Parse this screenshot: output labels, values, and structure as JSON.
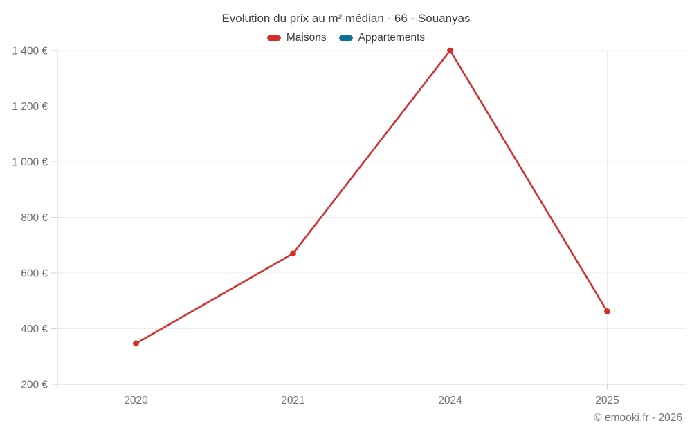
{
  "title": "Evolution du prix au m² médian - 66 - Souanyas",
  "legend": {
    "items": [
      {
        "label": "Maisons",
        "color": "#d32f2f"
      },
      {
        "label": "Appartements",
        "color": "#0f6d9e"
      }
    ]
  },
  "footer": {
    "credit": "© emooki.fr - 2026"
  },
  "chart_data": {
    "type": "line",
    "title": "Evolution du prix au m² médian - 66 - Souanyas",
    "categories": [
      "2020",
      "2021",
      "2024",
      "2025"
    ],
    "series": [
      {
        "name": "Maisons",
        "color": "#d32f2f",
        "values": [
          347,
          670,
          1400,
          462
        ]
      },
      {
        "name": "Appartements",
        "color": "#0f6d9e",
        "values": []
      }
    ],
    "ylim": [
      200,
      1400
    ],
    "yticks": [
      200,
      400,
      600,
      800,
      1000,
      1200,
      1400
    ],
    "ytick_labels": [
      "200 €",
      "400 €",
      "600 €",
      "800 €",
      "1 000 €",
      "1 200 €",
      "1 400 €"
    ],
    "currency_suffix": "€",
    "grid": true,
    "legend_position": "top",
    "point_style": "circle"
  }
}
